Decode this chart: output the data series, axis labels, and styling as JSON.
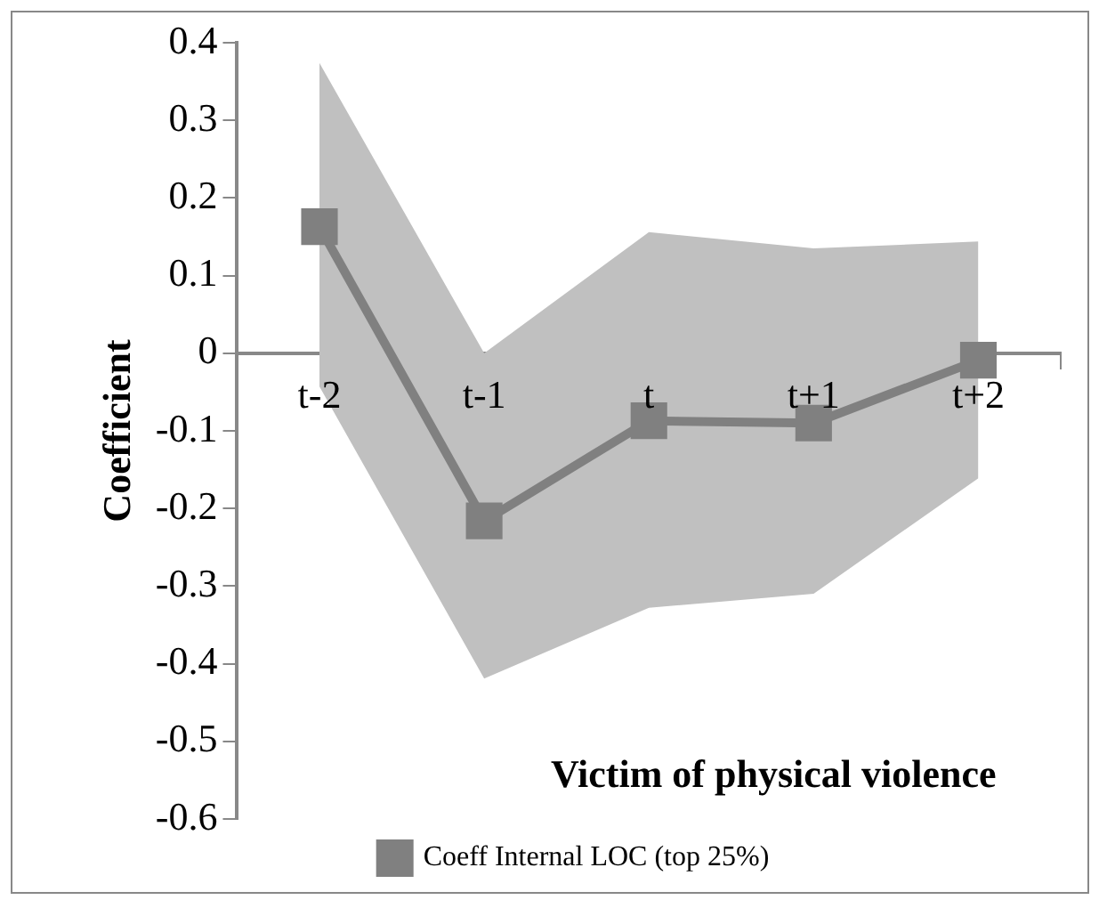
{
  "chart_data": {
    "type": "line",
    "xlabel": "Victim of physical violence",
    "ylabel": "Coefficient",
    "categories": [
      "t-2",
      "t-1",
      "t",
      "t+1",
      "t+2"
    ],
    "series": [
      {
        "name": "Coeff Internal LOC (top 25%)",
        "color": "#808080",
        "values": [
          0.163,
          -0.216,
          -0.087,
          -0.09,
          -0.009
        ],
        "lower": [
          -0.043,
          -0.419,
          -0.328,
          -0.31,
          -0.161
        ],
        "upper": [
          0.374,
          0.0,
          0.156,
          0.135,
          0.144
        ]
      }
    ],
    "ylim": [
      -0.6,
      0.4
    ],
    "yticks": [
      {
        "value": -0.6,
        "label": "-0.6"
      },
      {
        "value": -0.5,
        "label": "-0.5"
      },
      {
        "value": -0.4,
        "label": "-0.4"
      },
      {
        "value": -0.3,
        "label": "-0.3"
      },
      {
        "value": -0.2,
        "label": "-0.2"
      },
      {
        "value": -0.1,
        "label": "-0.1"
      },
      0,
      {
        "value": 0.1,
        "label": "0.1"
      },
      {
        "value": 0.2,
        "label": "0.2"
      },
      {
        "value": 0.3,
        "label": "0.3"
      },
      {
        "value": 0.4,
        "label": "0.4"
      }
    ],
    "marker": "square",
    "grid": false,
    "legend": "bottom"
  }
}
